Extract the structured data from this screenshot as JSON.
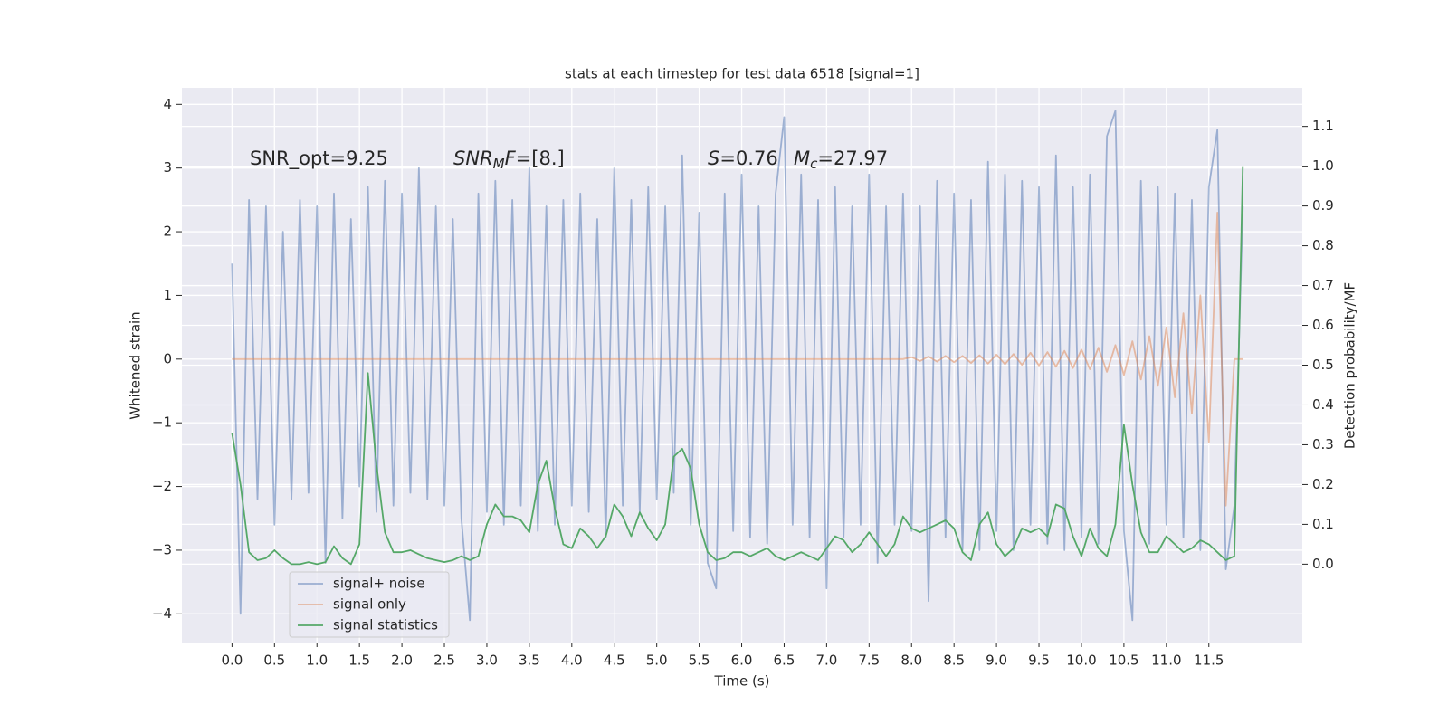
{
  "chart_data": {
    "type": "line",
    "title": "stats at each timestep for test data 6518 [signal=1]",
    "x_label": "Time (s)",
    "y_label": "Whitened strain",
    "y2_label": "Detection probability/MF",
    "annotations": [
      [
        {
          "text": "SNR_opt=9.25"
        }
      ],
      [
        {
          "text": "SNR",
          "style": "italic"
        },
        {
          "text": "M",
          "style": "italic-sub"
        },
        {
          "text": "F",
          "style": "italic"
        },
        {
          "text": "=[8.]"
        }
      ],
      [
        {
          "text": "S",
          "style": "italic"
        },
        {
          "text": "=0.76"
        }
      ],
      [
        {
          "text": "M",
          "style": "italic"
        },
        {
          "text": "c",
          "style": "italic-sub"
        },
        {
          "text": "=27.97"
        }
      ]
    ],
    "x": [
      0.0,
      0.1,
      0.2,
      0.3,
      0.4,
      0.5,
      0.6,
      0.7,
      0.8,
      0.9,
      1.0,
      1.1,
      1.2,
      1.3,
      1.4,
      1.5,
      1.6,
      1.7,
      1.8,
      1.9,
      2.0,
      2.1,
      2.2,
      2.3,
      2.4,
      2.5,
      2.6,
      2.7,
      2.8,
      2.9,
      3.0,
      3.1,
      3.2,
      3.3,
      3.4,
      3.5,
      3.6,
      3.7,
      3.8,
      3.9,
      4.0,
      4.1,
      4.2,
      4.3,
      4.4,
      4.5,
      4.6,
      4.7,
      4.8,
      4.9,
      5.0,
      5.1,
      5.2,
      5.3,
      5.4,
      5.5,
      5.6,
      5.7,
      5.8,
      5.9,
      6.0,
      6.1,
      6.2,
      6.3,
      6.4,
      6.5,
      6.6,
      6.7,
      6.8,
      6.9,
      7.0,
      7.1,
      7.2,
      7.3,
      7.4,
      7.5,
      7.6,
      7.7,
      7.8,
      7.9,
      8.0,
      8.1,
      8.2,
      8.3,
      8.4,
      8.5,
      8.6,
      8.7,
      8.8,
      8.9,
      9.0,
      9.1,
      9.2,
      9.3,
      9.4,
      9.5,
      9.6,
      9.7,
      9.8,
      9.9,
      10.0,
      10.1,
      10.2,
      10.3,
      10.4,
      10.5,
      10.6,
      10.7,
      10.8,
      10.9,
      11.0,
      11.1,
      11.2,
      11.3,
      11.4,
      11.5,
      11.6,
      11.7,
      11.8,
      11.9
    ],
    "series": [
      {
        "name": "signal+ noise",
        "color": "#4c72b0",
        "opacity": 0.5,
        "values": [
          1.5,
          -4.0,
          2.5,
          -2.2,
          2.4,
          -2.6,
          2.0,
          -2.2,
          2.5,
          -2.1,
          2.4,
          -3.2,
          2.6,
          -2.5,
          2.2,
          -2.0,
          2.7,
          -2.4,
          2.8,
          -2.3,
          2.6,
          -2.1,
          3.0,
          -2.2,
          2.4,
          -2.3,
          2.2,
          -2.5,
          -4.1,
          2.6,
          -2.4,
          2.8,
          -2.6,
          2.5,
          -2.3,
          3.0,
          -2.7,
          2.4,
          -2.6,
          2.5,
          -2.3,
          2.6,
          -2.4,
          2.2,
          -2.8,
          3.0,
          -2.3,
          2.5,
          -2.4,
          2.7,
          -2.2,
          2.4,
          -2.1,
          3.2,
          -2.6,
          2.3,
          -3.2,
          -3.6,
          2.6,
          -2.7,
          2.9,
          -2.8,
          2.4,
          -2.9,
          2.6,
          3.8,
          -2.6,
          2.9,
          -2.8,
          2.5,
          -3.6,
          2.7,
          -2.8,
          2.4,
          -2.6,
          2.9,
          -3.2,
          2.4,
          -2.6,
          2.6,
          -2.7,
          2.4,
          -3.8,
          2.8,
          -2.8,
          2.6,
          -3.0,
          2.5,
          -3.0,
          3.1,
          -2.7,
          2.9,
          -3.0,
          2.8,
          -2.6,
          2.7,
          -2.9,
          3.2,
          -3.0,
          2.7,
          -2.8,
          2.9,
          -2.9,
          3.5,
          3.9,
          -2.7,
          -4.1,
          2.8,
          -2.9,
          2.7,
          -2.6,
          2.6,
          -2.8,
          2.5,
          -3.0,
          2.7,
          3.6,
          -3.3,
          -2.3,
          2.4
        ]
      },
      {
        "name": "signal only",
        "color": "#dd8452",
        "opacity": 0.5,
        "values": [
          0,
          0,
          0,
          0,
          0,
          0,
          0,
          0,
          0,
          0,
          0,
          0,
          0,
          0,
          0,
          0,
          0,
          0,
          0,
          0,
          0,
          0,
          0,
          0,
          0,
          0,
          0,
          0,
          0,
          0,
          0,
          0,
          0,
          0,
          0,
          0,
          0,
          0,
          0,
          0,
          0,
          0,
          0,
          0,
          0,
          0,
          0,
          0,
          0,
          0,
          0,
          0,
          0,
          0,
          0,
          0,
          0,
          0,
          0,
          0,
          0,
          0,
          0,
          0,
          0,
          0,
          0,
          0,
          0,
          0,
          0,
          0,
          0,
          0,
          0,
          0,
          0,
          0,
          0,
          0,
          0.03,
          -0.03,
          0.04,
          -0.04,
          0.05,
          -0.05,
          0.05,
          -0.06,
          0.06,
          -0.07,
          0.07,
          -0.08,
          0.08,
          -0.09,
          0.1,
          -0.1,
          0.11,
          -0.12,
          0.13,
          -0.14,
          0.15,
          -0.16,
          0.18,
          -0.2,
          0.22,
          -0.25,
          0.28,
          -0.32,
          0.36,
          -0.42,
          0.5,
          -0.6,
          0.72,
          -0.85,
          1.0,
          -1.3,
          2.3,
          -2.3,
          0,
          0
        ]
      },
      {
        "name": "signal statistics",
        "color": "#55a868",
        "opacity": 1,
        "axis": "y2",
        "values": [
          0.33,
          0.2,
          0.03,
          0.01,
          0.015,
          0.035,
          0.015,
          0,
          0,
          0.005,
          0,
          0.005,
          0.045,
          0.015,
          0,
          0.05,
          0.48,
          0.25,
          0.08,
          0.03,
          0.03,
          0.035,
          0.025,
          0.015,
          0.01,
          0.005,
          0.01,
          0.02,
          0.01,
          0.02,
          0.1,
          0.15,
          0.12,
          0.12,
          0.11,
          0.08,
          0.2,
          0.26,
          0.14,
          0.05,
          0.04,
          0.09,
          0.07,
          0.04,
          0.07,
          0.15,
          0.12,
          0.07,
          0.13,
          0.09,
          0.06,
          0.1,
          0.27,
          0.29,
          0.24,
          0.1,
          0.03,
          0.01,
          0.015,
          0.03,
          0.03,
          0.02,
          0.03,
          0.04,
          0.02,
          0.01,
          0.02,
          0.03,
          0.02,
          0.01,
          0.04,
          0.07,
          0.06,
          0.03,
          0.05,
          0.08,
          0.05,
          0.02,
          0.05,
          0.12,
          0.09,
          0.08,
          0.09,
          0.1,
          0.11,
          0.09,
          0.03,
          0.01,
          0.1,
          0.13,
          0.05,
          0.02,
          0.04,
          0.09,
          0.08,
          0.09,
          0.07,
          0.15,
          0.14,
          0.07,
          0.02,
          0.09,
          0.04,
          0.02,
          0.1,
          0.35,
          0.2,
          0.08,
          0.03,
          0.03,
          0.07,
          0.05,
          0.03,
          0.04,
          0.06,
          0.05,
          0.03,
          0.01,
          0.02,
          1.0
        ]
      }
    ],
    "xlim": [
      -0.59,
      12.6
    ],
    "xticks": [
      {
        "value": 0,
        "label": "0.0"
      },
      0.5,
      {
        "value": 1,
        "label": "1.0"
      },
      1.5,
      {
        "value": 2,
        "label": "2.0"
      },
      2.5,
      {
        "value": 3,
        "label": "3.0"
      },
      3.5,
      {
        "value": 4,
        "label": "4.0"
      },
      4.5,
      {
        "value": 5,
        "label": "5.0"
      },
      5.5,
      {
        "value": 6,
        "label": "6.0"
      },
      6.5,
      {
        "value": 7,
        "label": "7.0"
      },
      7.5,
      {
        "value": 8,
        "label": "8.0"
      },
      8.5,
      {
        "value": 9,
        "label": "9.0"
      },
      9.5,
      {
        "value": 10,
        "label": "10.0"
      },
      10.5,
      {
        "value": 11,
        "label": "11.0"
      },
      11.5
    ],
    "ylim": [
      -4.45,
      4.26
    ],
    "yticks": [
      {
        "value": -4,
        "label": "−4"
      },
      {
        "value": -3,
        "label": "−3"
      },
      {
        "value": -2,
        "label": "−2"
      },
      {
        "value": -1,
        "label": "−1"
      },
      0,
      1,
      2,
      3,
      4
    ],
    "y2lim": [
      -0.197,
      1.197
    ],
    "y2ticks": [
      {
        "value": 0,
        "label": "0.0"
      },
      0.1,
      0.2,
      0.3,
      0.4,
      0.5,
      0.6,
      0.7,
      0.8,
      0.9,
      {
        "value": 1,
        "label": "1.0"
      },
      1.1
    ],
    "grid": true,
    "legend": "lower left"
  }
}
